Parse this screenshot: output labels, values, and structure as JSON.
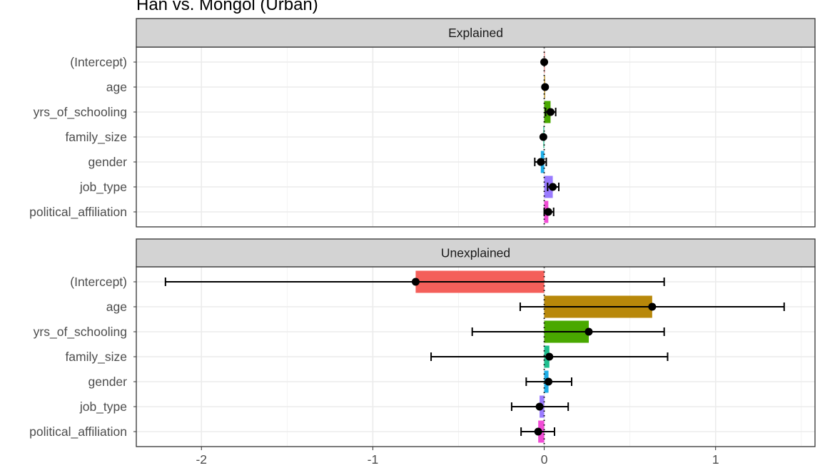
{
  "chart_data": {
    "type": "bar",
    "title": "Han vs. Mongol (Urban)",
    "xlabel": "",
    "ylabel": "",
    "xlim": [
      -2.38,
      1.58
    ],
    "x_ticks": [
      -2,
      -1,
      0,
      1
    ],
    "x_tick_labels": [
      "-2",
      "-1",
      "0",
      "1"
    ],
    "grid": true,
    "legend": "none",
    "categories": [
      "(Intercept)",
      "age",
      "yrs_of_schooling",
      "family_size",
      "gender",
      "job_type",
      "political_affiliation"
    ],
    "colors": [
      "#F45F5A",
      "#B8880A",
      "#49A800",
      "#1FBF8F",
      "#1DAEE8",
      "#9A7BFF",
      "#F14CD6"
    ],
    "panels": [
      {
        "name": "Explained",
        "values": [
          0.0,
          0.005,
          0.037,
          -0.005,
          -0.02,
          0.05,
          0.024
        ],
        "lower": [
          0.0,
          0.005,
          0.008,
          -0.005,
          -0.055,
          0.02,
          0.0
        ],
        "upper": [
          0.0,
          0.005,
          0.067,
          -0.005,
          0.012,
          0.085,
          0.055
        ]
      },
      {
        "name": "Unexplained",
        "values": [
          -0.75,
          0.63,
          0.26,
          0.03,
          0.025,
          -0.027,
          -0.035
        ],
        "lower": [
          -2.21,
          -0.14,
          -0.42,
          -0.66,
          -0.105,
          -0.19,
          -0.135
        ],
        "upper": [
          0.7,
          1.4,
          0.7,
          0.72,
          0.16,
          0.14,
          0.06
        ]
      }
    ]
  }
}
